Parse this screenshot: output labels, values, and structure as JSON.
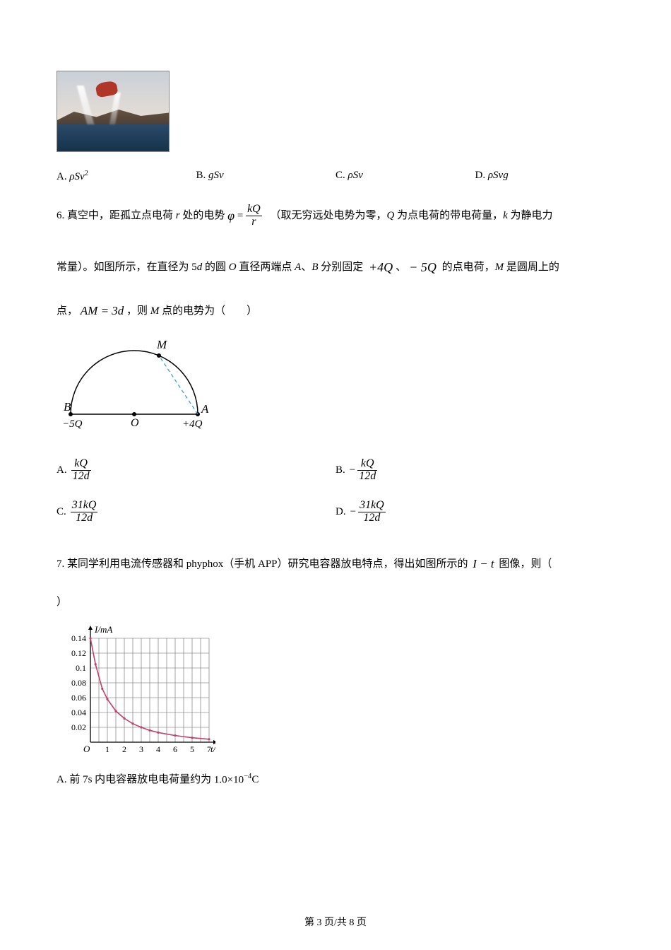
{
  "q5_choices": {
    "A": "ρSv²",
    "B": "gSv",
    "C": "ρSv",
    "D": "ρSvg"
  },
  "q6": {
    "intro_a": "6. 真空中，距孤立点电荷 ",
    "intro_r": "r",
    "intro_b": " 处的电势",
    "phi": "φ",
    "eq": " = ",
    "frac_num": "kQ",
    "frac_den": "r",
    "intro_c": "（取无穷远处电势为零，",
    "Q": "Q",
    "intro_d": " 为点电荷的带电荷量，",
    "k": "k",
    "intro_e": " 为静电力",
    "line2_a": "常量）。如图所示，在直径为 5",
    "d": "d",
    "line2_b": " 的圆 ",
    "O": "O",
    "line2_c": " 直径两端点 ",
    "A": "A",
    "line2_d": "、",
    "B": "B",
    "line2_e": " 分别固定",
    "plus4Q": "+4Q",
    "sep": "、",
    "minus5Q": "− 5Q",
    "line2_f": "的点电荷，",
    "M": "M",
    "line2_g": " 是圆周上的",
    "line3_a": "点，",
    "AM": "AM",
    "eq3d": " = 3d",
    "line3_b": "，则 ",
    "line3_c": " 点的电势为（",
    "line3_d": "）",
    "diagram": {
      "M_label": "M",
      "B_label": "B",
      "O_label": "O",
      "A_label": "A",
      "B_charge": "−5Q",
      "A_charge": "+4Q"
    },
    "choices": {
      "A": {
        "num": "kQ",
        "den": "12d",
        "neg": false
      },
      "B": {
        "num": "kQ",
        "den": "12d",
        "neg": true
      },
      "C": {
        "num": "31kQ",
        "den": "12d",
        "neg": false
      },
      "D": {
        "num": "31kQ",
        "den": "12d",
        "neg": true
      }
    }
  },
  "q7": {
    "text_a": "7. 某同学利用电流传感器和 phyphox（手机 APP）研究电容器放电特点，得出如图所示的",
    "It": "I − t",
    "text_b": "图像，则（",
    "text_c": "）",
    "chart": {
      "y_label": "I/mA",
      "x_label": "t/s",
      "y_ticks": [
        "0.02",
        "0.04",
        "0.06",
        "0.08",
        "0.1",
        "0.12",
        "0.14"
      ],
      "x_ticks": [
        "1",
        "2",
        "3",
        "4",
        "6",
        "5",
        "7"
      ],
      "origin": "O",
      "grid_color": "#666666",
      "axis_color": "#000000",
      "curve_color": "#c04070",
      "y_max": 0.14,
      "x_max": 7,
      "points": [
        [
          0,
          0.14
        ],
        [
          0.3,
          0.105
        ],
        [
          0.7,
          0.072
        ],
        [
          1,
          0.058
        ],
        [
          1.5,
          0.042
        ],
        [
          2,
          0.032
        ],
        [
          2.5,
          0.025
        ],
        [
          3,
          0.02
        ],
        [
          3.5,
          0.016
        ],
        [
          4,
          0.013
        ],
        [
          5,
          0.009
        ],
        [
          6,
          0.006
        ],
        [
          7,
          0.004
        ]
      ]
    },
    "choice_A_a": "A. 前 7s 内电容器放电电荷量约为",
    "choice_A_b": "1.0×10",
    "choice_A_exp": "−4",
    "choice_A_c": "C"
  },
  "footer": {
    "a": "第 3 页/共 8 页"
  }
}
